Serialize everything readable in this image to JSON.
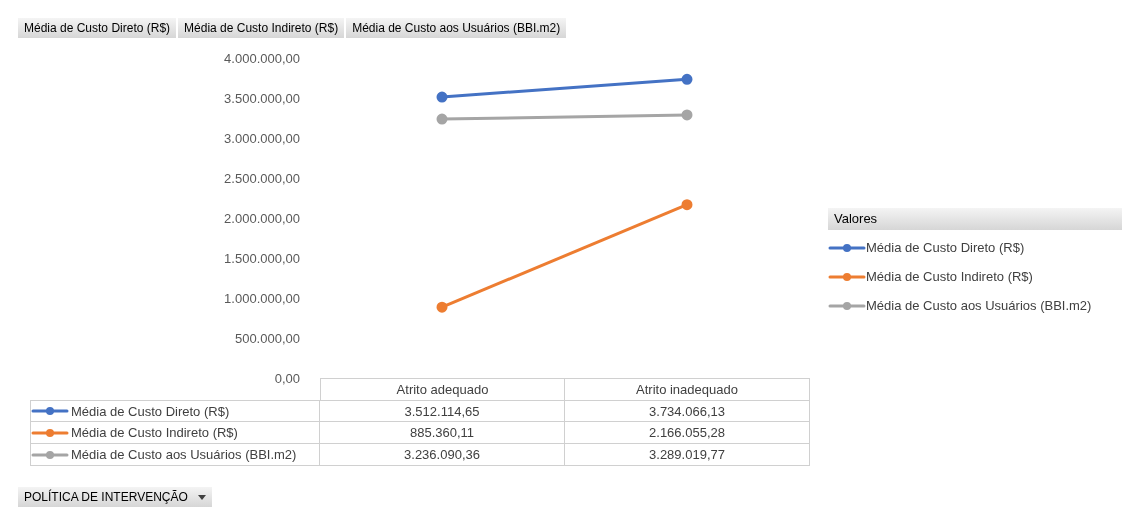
{
  "chart_data": {
    "type": "line",
    "legend_title": "Valores",
    "legend": "right",
    "marker": "circle",
    "line_style": "solid",
    "grid": false,
    "annotations": [
      "Média de Custo Direto (R$)",
      "Média de Custo Indireto (R$)",
      "Média de Custo aos Usuários (BBI.m2)",
      "POLÍTICA DE INTERVENÇÃO"
    ],
    "categories": [
      "Atrito adequado",
      "Atrito inadequado"
    ],
    "ylim": [
      0,
      4000000
    ],
    "yticks": [
      {
        "value": 0,
        "label": "0,00"
      },
      {
        "value": 500000,
        "label": "500.000,00"
      },
      {
        "value": 1000000,
        "label": "1.000.000,00"
      },
      {
        "value": 1500000,
        "label": "1.500.000,00"
      },
      {
        "value": 2000000,
        "label": "2.000.000,00"
      },
      {
        "value": 2500000,
        "label": "2.500.000,00"
      },
      {
        "value": 3000000,
        "label": "3.000.000,00"
      },
      {
        "value": 3500000,
        "label": "3.500.000,00"
      },
      {
        "value": 4000000,
        "label": "4.000.000,00"
      }
    ],
    "series": [
      {
        "name": "Média de Custo Direto (R$)",
        "color": "#4472c4",
        "values": [
          3512114.65,
          3734066.13
        ],
        "value_labels": [
          "3.512.114,65",
          "3.734.066,13"
        ]
      },
      {
        "name": "Média de Custo Indireto (R$)",
        "color": "#ed7d31",
        "values": [
          885360.11,
          2166055.28
        ],
        "value_labels": [
          "885.360,11",
          "2.166.055,28"
        ]
      },
      {
        "name": "Média de Custo aos Usuários (BBI.m2)",
        "color": "#a5a5a5",
        "values": [
          3236090.36,
          3289019.77
        ],
        "value_labels": [
          "3.236.090,36",
          "3.289.019,77"
        ]
      }
    ]
  }
}
